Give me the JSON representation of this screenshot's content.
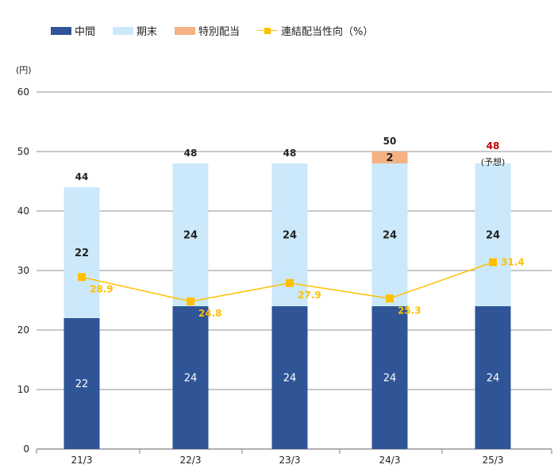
{
  "legend": {
    "interim": "中間",
    "year_end": "期末",
    "special": "特別配当",
    "payout": "連結配当性向（%）"
  },
  "colors": {
    "interim": "#2f5597",
    "year_end": "#cce9fb",
    "special": "#f4b183",
    "payout": "#ffc000",
    "forecast_total": "#c00000",
    "grid": "#a6a6a6"
  },
  "chart_data": {
    "type": "bar",
    "stacked": true,
    "unit_label": "(円)",
    "categories": [
      "21/3",
      "22/3",
      "23/3",
      "24/3",
      "25/3"
    ],
    "series": [
      {
        "name": "中間",
        "values": [
          22,
          24,
          24,
          24,
          24
        ]
      },
      {
        "name": "期末",
        "values": [
          22,
          24,
          24,
          24,
          24
        ]
      },
      {
        "name": "特別配当",
        "values": [
          0,
          0,
          0,
          2,
          0
        ]
      }
    ],
    "totals": [
      "44",
      "48",
      "48",
      "50",
      "48"
    ],
    "forecast_note": "(予想)",
    "line_series": {
      "name": "連結配当性向（%）",
      "values": [
        28.9,
        24.8,
        27.9,
        25.3,
        31.4
      ],
      "labels": [
        "28.9",
        "24.8",
        "27.9",
        "25.3",
        "31.4"
      ]
    },
    "ylim": [
      0,
      60
    ],
    "yticks": [
      0,
      10,
      20,
      30,
      40,
      50,
      60
    ],
    "grid": true,
    "legend_position": "top-left"
  }
}
